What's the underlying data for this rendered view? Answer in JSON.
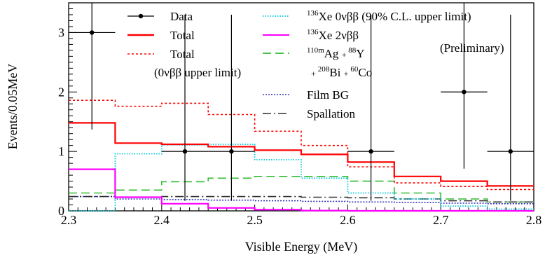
{
  "chart_data": {
    "type": "step-histogram",
    "xlabel": "Visible Energy (MeV)",
    "ylabel": "Events/0.05MeV",
    "xlim": [
      2.3,
      2.8
    ],
    "ylim": [
      0,
      3.5
    ],
    "x_ticks": [
      "2.3",
      "2.4",
      "2.5",
      "2.6",
      "2.7",
      "2.8"
    ],
    "y_ticks": [
      "0",
      "1",
      "2",
      "3"
    ],
    "x_tick_values": [
      2.3,
      2.4,
      2.5,
      2.6,
      2.7,
      2.8
    ],
    "y_tick_values": [
      0,
      1,
      2,
      3
    ],
    "bin_edges": [
      2.3,
      2.35,
      2.4,
      2.45,
      2.5,
      2.55,
      2.6,
      2.65,
      2.7,
      2.75,
      2.8
    ],
    "annotation": "(Preliminary)",
    "data_points": {
      "x": [
        2.325,
        2.425,
        2.475,
        2.625,
        2.725,
        2.775
      ],
      "y": [
        3.0,
        1.0,
        1.0,
        1.0,
        2.0,
        1.0
      ],
      "yerr_low": [
        1.63,
        0.83,
        0.83,
        0.83,
        1.29,
        0.83
      ],
      "yerr_high": [
        2.92,
        2.3,
        2.3,
        2.3,
        2.64,
        2.3
      ],
      "xerr": 0.025
    },
    "series": [
      {
        "name": "Total",
        "color": "#ff0000",
        "style": "solid",
        "values": [
          1.48,
          1.14,
          1.12,
          1.08,
          1.02,
          0.95,
          0.82,
          0.58,
          0.5,
          0.42
        ]
      },
      {
        "name": "Total (0νββ upper limit)",
        "color": "#ff0000",
        "style": "dotted",
        "values": [
          1.86,
          1.76,
          1.81,
          1.62,
          1.34,
          1.1,
          0.74,
          0.47,
          0.41,
          0.36
        ]
      },
      {
        "name": "136Xe 0νββ (90% C.L. upper limit)",
        "color": "#00c8d8",
        "style": "dotted",
        "values": [
          0.0,
          0.96,
          1.11,
          1.12,
          0.86,
          0.55,
          0.3,
          0.2,
          0.08,
          0.03
        ]
      },
      {
        "name": "136Xe 2νββ",
        "color": "#ff00ff",
        "style": "solid",
        "values": [
          0.7,
          0.23,
          0.12,
          0.05,
          0.02,
          0.005,
          0.0,
          0.0,
          0.0,
          0.0
        ]
      },
      {
        "name": "110mAg + 88Y + 208Bi + 60Co",
        "color": "#33bb33",
        "style": "dashed",
        "values": [
          0.3,
          0.35,
          0.49,
          0.55,
          0.58,
          0.58,
          0.5,
          0.3,
          0.2,
          0.15
        ]
      },
      {
        "name": "Film BG",
        "color": "#3333bb",
        "style": "dotted",
        "values": [
          0.24,
          0.2,
          0.19,
          0.18,
          0.17,
          0.16,
          0.15,
          0.14,
          0.13,
          0.12
        ]
      },
      {
        "name": "Spallation",
        "color": "#333333",
        "style": "dashdot",
        "values": [
          0.24,
          0.23,
          0.24,
          0.24,
          0.24,
          0.23,
          0.22,
          0.2,
          0.17,
          0.15
        ]
      }
    ],
    "legend": {
      "placement": "top",
      "left_column": [
        {
          "key": "data",
          "label": "Data"
        },
        {
          "key": "total",
          "label": "Total"
        },
        {
          "key": "total_ul",
          "label": "Total"
        },
        {
          "key": "total_ul_sub",
          "label": "(0νββ upper limit)"
        }
      ],
      "right_column": [
        {
          "key": "xe0v",
          "label": "136Xe 0νββ (90% C.L. upper limit)"
        },
        {
          "key": "xe2v",
          "label": "136Xe 2νββ"
        },
        {
          "key": "ag",
          "label": "110mAg + 88Y"
        },
        {
          "key": "bi",
          "label": "+ 208Bi + 60Co"
        },
        {
          "key": "film",
          "label": "Film BG"
        },
        {
          "key": "spall",
          "label": "Spallation"
        }
      ]
    }
  }
}
